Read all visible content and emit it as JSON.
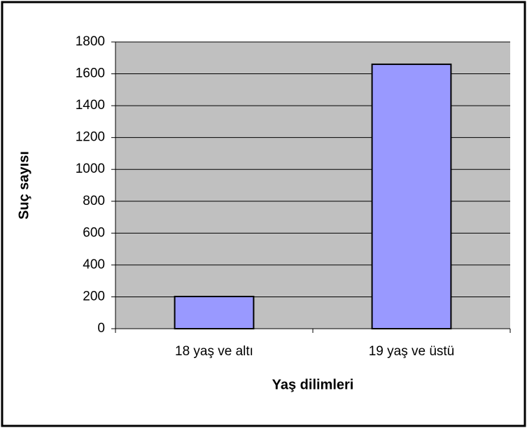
{
  "chart_data": {
    "type": "bar",
    "categories": [
      "18 yaş ve altı",
      "19 yaş ve üstü"
    ],
    "values": [
      202,
      1660
    ],
    "color": "#9999ff",
    "xlabel": "Yaş dilimleri",
    "ylabel": "Suç sayısı",
    "ylim": [
      0,
      1800
    ],
    "yticks": [
      0,
      200,
      400,
      600,
      800,
      1000,
      1200,
      1400,
      1600,
      1800
    ],
    "grid": true
  }
}
